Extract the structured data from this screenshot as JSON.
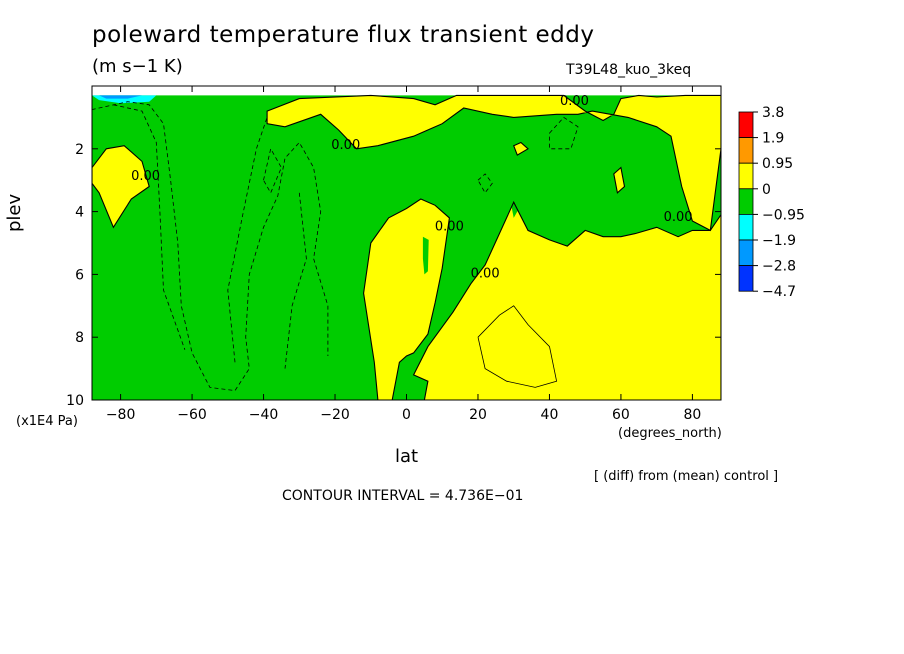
{
  "chart_data": {
    "type": "contour",
    "title": "poleward temperature flux transient eddy",
    "units": "(m s−1 K)",
    "run_id": "T39L48_kuo_3keq",
    "xlabel": "lat",
    "x_unit": "(degrees_north)",
    "ylabel": "plev",
    "y_unit": "(x1E4 Pa)",
    "xlim": [
      -88,
      88
    ],
    "ylim": [
      10,
      0
    ],
    "x_ticks": [
      "−80",
      "−60",
      "−40",
      "−20",
      "0",
      "20",
      "40",
      "60",
      "80"
    ],
    "y_ticks": [
      "2",
      "4",
      "6",
      "8",
      "10"
    ],
    "contour_label": "0.00",
    "contour_interval_text": "CONTOUR INTERVAL = 4.736E−01",
    "note": "[ (diff) from (mean) control ]",
    "colorbar": {
      "labels": [
        "3.8",
        "1.9",
        "0.95",
        "0",
        "−0.95",
        "−1.9",
        "−2.8",
        "−4.7"
      ],
      "colors": [
        "#ff0000",
        "#ff9900",
        "#ffff00",
        "#00cc00",
        "#00ffff",
        "#0099ff",
        "#0033ff"
      ]
    },
    "fill_regions": [
      {
        "color": "#00cc00",
        "points": [
          [
            -88,
            0.3
          ],
          [
            88,
            0.3
          ],
          [
            88,
            10
          ],
          [
            -88,
            10
          ]
        ]
      },
      {
        "color": "#ffff00",
        "points": [
          [
            -88,
            2.6
          ],
          [
            -84,
            2.0
          ],
          [
            -79,
            1.9
          ],
          [
            -74,
            2.4
          ],
          [
            -72,
            3.2
          ],
          [
            -77,
            3.6
          ],
          [
            -82,
            4.5
          ],
          [
            -86,
            3.4
          ],
          [
            -88,
            3.1
          ]
        ]
      },
      {
        "color": "#ffff00",
        "points": [
          [
            -39,
            0.8
          ],
          [
            -30,
            0.4
          ],
          [
            -10,
            0.3
          ],
          [
            2,
            0.4
          ],
          [
            8,
            0.6
          ],
          [
            14,
            0.3
          ],
          [
            44,
            0.3
          ],
          [
            50,
            0.8
          ],
          [
            55,
            1.1
          ],
          [
            58,
            0.9
          ],
          [
            60,
            0.4
          ],
          [
            65,
            0.3
          ],
          [
            70,
            0.35
          ],
          [
            78,
            0.3
          ],
          [
            88,
            0.3
          ],
          [
            88,
            2.0
          ],
          [
            85,
            4.6
          ],
          [
            80,
            4.3
          ],
          [
            77,
            3.2
          ],
          [
            74,
            1.6
          ],
          [
            70,
            1.3
          ],
          [
            62,
            1.0
          ],
          [
            52,
            0.8
          ],
          [
            48,
            0.9
          ],
          [
            42,
            0.9
          ],
          [
            30,
            1.0
          ],
          [
            24,
            0.9
          ],
          [
            16,
            0.7
          ],
          [
            10,
            1.2
          ],
          [
            2,
            1.6
          ],
          [
            -8,
            1.9
          ],
          [
            -14,
            2.0
          ],
          [
            -19,
            1.4
          ],
          [
            -24,
            0.9
          ],
          [
            -34,
            1.3
          ],
          [
            -39,
            1.2
          ]
        ]
      },
      {
        "color": "#ffff00",
        "points": [
          [
            -8,
            10
          ],
          [
            -9,
            8.8
          ],
          [
            -12,
            6.6
          ],
          [
            -10,
            5.0
          ],
          [
            -5,
            4.2
          ],
          [
            0,
            3.9
          ],
          [
            4,
            3.6
          ],
          [
            8,
            3.8
          ],
          [
            12,
            4.2
          ],
          [
            10,
            5.8
          ],
          [
            8,
            6.9
          ],
          [
            6,
            7.9
          ],
          [
            2,
            8.5
          ],
          [
            0,
            8.6
          ],
          [
            -2,
            8.8
          ],
          [
            -4,
            10
          ]
        ]
      },
      {
        "color": "#ffff00",
        "points": [
          [
            2,
            9.2
          ],
          [
            6,
            8.3
          ],
          [
            13,
            7.2
          ],
          [
            18,
            6.3
          ],
          [
            22,
            5.7
          ],
          [
            26,
            4.7
          ],
          [
            30,
            3.7
          ],
          [
            34,
            4.6
          ],
          [
            40,
            4.9
          ],
          [
            45,
            5.1
          ],
          [
            50,
            4.6
          ],
          [
            55,
            4.8
          ],
          [
            60,
            4.8
          ],
          [
            64,
            4.7
          ],
          [
            70,
            4.5
          ],
          [
            76,
            4.8
          ],
          [
            80,
            4.6
          ],
          [
            85,
            4.6
          ],
          [
            88,
            4.1
          ],
          [
            88,
            10
          ],
          [
            5,
            10
          ],
          [
            6,
            9.4
          ]
        ]
      },
      {
        "color": "#00cc00",
        "points": [
          [
            4.6,
            4.8
          ],
          [
            6.2,
            4.9
          ],
          [
            6,
            5.9
          ],
          [
            5,
            6.0
          ],
          [
            4.6,
            5.5
          ]
        ]
      },
      {
        "color": "#00cc00",
        "points": [
          [
            29,
            3.6
          ],
          [
            31,
            3.5
          ],
          [
            32,
            3.8
          ],
          [
            30,
            4.2
          ]
        ]
      },
      {
        "color": "#ffff00",
        "points": [
          [
            30,
            1.9
          ],
          [
            32,
            1.8
          ],
          [
            34,
            2.0
          ],
          [
            31,
            2.2
          ]
        ]
      },
      {
        "color": "#ffff00",
        "points": [
          [
            58,
            2.8
          ],
          [
            60,
            2.6
          ],
          [
            61,
            3.2
          ],
          [
            59,
            3.4
          ]
        ]
      },
      {
        "color": "#00ffff",
        "points": [
          [
            -88,
            0.3
          ],
          [
            -70,
            0.3
          ],
          [
            -72,
            0.5
          ],
          [
            -80,
            0.55
          ],
          [
            -86,
            0.45
          ]
        ]
      },
      {
        "color": "#0099ff",
        "points": [
          [
            -86,
            0.3
          ],
          [
            -74,
            0.3
          ],
          [
            -78,
            0.4
          ],
          [
            -84,
            0.4
          ]
        ]
      }
    ],
    "contours": [
      {
        "style": "dashed",
        "points": [
          [
            -90,
            0.8
          ],
          [
            -78,
            0.5
          ],
          [
            -72,
            0.6
          ],
          [
            -68,
            1.2
          ],
          [
            -66,
            3.0
          ],
          [
            -64,
            5.0
          ],
          [
            -63,
            7.0
          ],
          [
            -60,
            8.5
          ],
          [
            -55,
            9.6
          ],
          [
            -48,
            9.7
          ],
          [
            -44,
            9.0
          ],
          [
            -45,
            8.0
          ],
          [
            -44,
            6.0
          ],
          [
            -40,
            4.5
          ],
          [
            -36,
            3.5
          ],
          [
            -34,
            2.3
          ],
          [
            -30,
            1.8
          ],
          [
            -26,
            2.6
          ],
          [
            -24,
            4.0
          ],
          [
            -26,
            5.5
          ],
          [
            -22,
            7.0
          ],
          [
            -22,
            8.6
          ]
        ]
      },
      {
        "style": "dashed",
        "points": [
          [
            -82,
            0.6
          ],
          [
            -74,
            0.8
          ],
          [
            -70,
            1.8
          ],
          [
            -69,
            4.0
          ],
          [
            -68,
            6.5
          ],
          [
            -62,
            8.4
          ]
        ]
      },
      {
        "style": "dashed",
        "points": [
          [
            -48,
            8.8
          ],
          [
            -50,
            6.5
          ],
          [
            -46,
            4.2
          ],
          [
            -42,
            2.0
          ],
          [
            -39,
            1.0
          ]
        ]
      },
      {
        "style": "dashed",
        "points": [
          [
            -40,
            3.0
          ],
          [
            -38,
            2.0
          ],
          [
            -35,
            2.6
          ],
          [
            -38,
            3.4
          ],
          [
            -40,
            3.0
          ]
        ]
      },
      {
        "style": "dashed",
        "points": [
          [
            -30,
            3.4
          ],
          [
            -28,
            5.5
          ],
          [
            -32,
            7.0
          ],
          [
            -34,
            9.0
          ]
        ]
      },
      {
        "style": "dashed",
        "points": [
          [
            40,
            1.5
          ],
          [
            44,
            1.0
          ],
          [
            48,
            1.3
          ],
          [
            46,
            2.0
          ],
          [
            40,
            2.0
          ],
          [
            40,
            1.5
          ]
        ]
      },
      {
        "style": "dashed",
        "points": [
          [
            20,
            3.0
          ],
          [
            22,
            2.8
          ],
          [
            24,
            3.1
          ],
          [
            22,
            3.4
          ],
          [
            20,
            3.0
          ]
        ]
      },
      {
        "style": "solid",
        "points": [
          [
            20,
            8.0
          ],
          [
            26,
            7.3
          ],
          [
            30,
            7.0
          ],
          [
            34,
            7.6
          ],
          [
            40,
            8.3
          ],
          [
            42,
            9.4
          ],
          [
            36,
            9.6
          ],
          [
            28,
            9.4
          ],
          [
            22,
            9.0
          ],
          [
            20,
            8.0
          ]
        ]
      }
    ],
    "contour_label_positions": [
      [
        -73,
        3.0
      ],
      [
        -17,
        2.0
      ],
      [
        12,
        4.6
      ],
      [
        22,
        6.1
      ],
      [
        47,
        0.6
      ],
      [
        76,
        4.3
      ]
    ]
  }
}
